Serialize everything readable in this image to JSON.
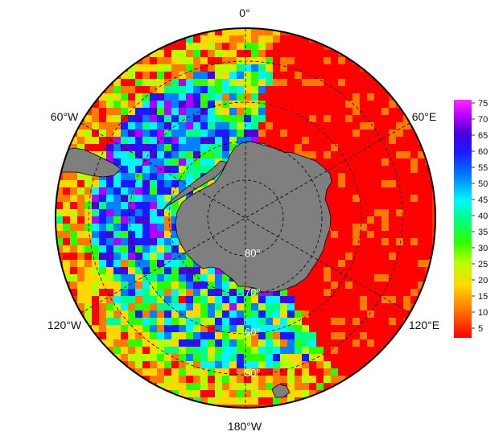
{
  "map": {
    "projection": "south-polar-stereographic",
    "longitude_labels": {
      "top": "0°",
      "upper_left": "60°W",
      "upper_right": "60°E",
      "lower_left": "120°W",
      "lower_right": "120°E",
      "bottom": "180°W"
    },
    "latitude_labels": [
      "80°",
      "70°",
      "60°",
      "50°"
    ],
    "colors": {
      "land": "#7f7f7f",
      "coastline": "#000000",
      "graticule": "#000000",
      "outline": "#000000"
    }
  },
  "colorbar": {
    "colormap": "jet-like (red low → magenta high)",
    "min": 2,
    "max": 76,
    "ticks": [
      "75",
      "70",
      "65",
      "60",
      "55",
      "50",
      "45",
      "40",
      "35",
      "30",
      "25",
      "20",
      "15",
      "10",
      "5"
    ],
    "tick_values": [
      75,
      70,
      65,
      60,
      55,
      50,
      45,
      40,
      35,
      30,
      25,
      20,
      15,
      10,
      5
    ]
  }
}
